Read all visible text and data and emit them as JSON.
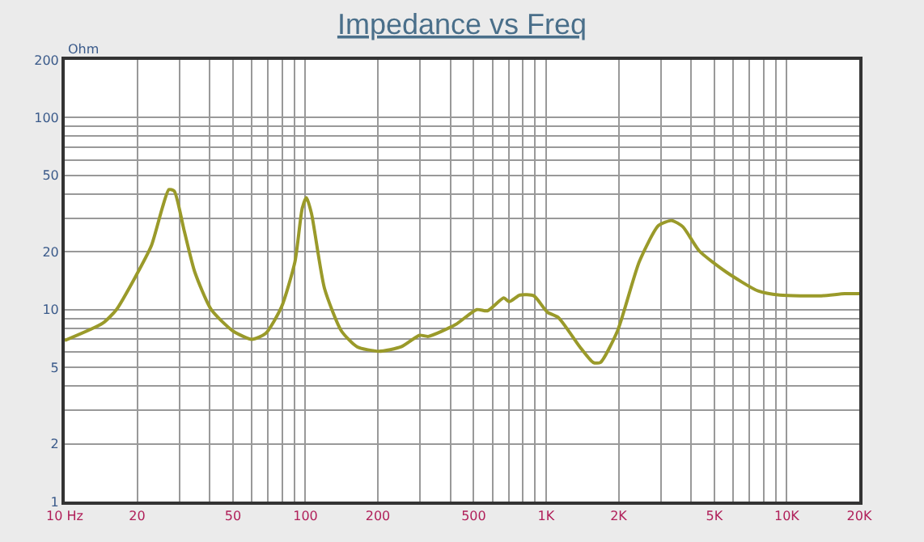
{
  "chart_data": {
    "type": "line",
    "title": "Impedance vs Freq",
    "ylabel": "Ohm",
    "log": "xy",
    "grid": true,
    "legend": false,
    "marker": "none",
    "line_style": "solid",
    "xlim": [
      10,
      20000
    ],
    "ylim": [
      1,
      200
    ],
    "xticks": [
      {
        "value": 10,
        "label": "10 Hz"
      },
      20,
      {
        "value": 30,
        "label": null
      },
      {
        "value": 40,
        "label": null
      },
      50,
      {
        "value": 60,
        "label": null
      },
      {
        "value": 70,
        "label": null
      },
      {
        "value": 80,
        "label": null
      },
      {
        "value": 90,
        "label": null
      },
      100,
      200,
      {
        "value": 300,
        "label": null
      },
      {
        "value": 400,
        "label": null
      },
      500,
      {
        "value": 600,
        "label": null
      },
      {
        "value": 700,
        "label": null
      },
      {
        "value": 800,
        "label": null
      },
      {
        "value": 900,
        "label": null
      },
      {
        "value": 1000,
        "label": "1K"
      },
      {
        "value": 2000,
        "label": "2K"
      },
      {
        "value": 3000,
        "label": null
      },
      {
        "value": 4000,
        "label": null
      },
      {
        "value": 5000,
        "label": "5K"
      },
      {
        "value": 6000,
        "label": null
      },
      {
        "value": 7000,
        "label": null
      },
      {
        "value": 8000,
        "label": null
      },
      {
        "value": 9000,
        "label": null
      },
      {
        "value": 10000,
        "label": "10K"
      },
      {
        "value": 20000,
        "label": "20K"
      }
    ],
    "yticks": [
      1,
      2,
      {
        "value": 3,
        "label": null
      },
      {
        "value": 4,
        "label": null
      },
      5,
      {
        "value": 6,
        "label": null
      },
      {
        "value": 7,
        "label": null
      },
      {
        "value": 8,
        "label": null
      },
      {
        "value": 9,
        "label": null
      },
      10,
      20,
      {
        "value": 30,
        "label": null
      },
      {
        "value": 40,
        "label": null
      },
      50,
      {
        "value": 60,
        "label": null
      },
      {
        "value": 70,
        "label": null
      },
      {
        "value": 80,
        "label": null
      },
      {
        "value": 90,
        "label": null
      },
      100,
      200
    ],
    "series": [
      {
        "color": "#9a9a2a",
        "x": [
          10,
          14.4,
          16.4,
          19.6,
          22.9,
          25.4,
          27.1,
          28.5,
          31.3,
          34.7,
          40.6,
          49.9,
          59.9,
          68.3,
          79.5,
          90.5,
          97,
          101,
          106,
          120,
          141,
          164,
          202,
          250,
          298,
          324,
          420,
          515,
          570,
          667,
          703,
          778,
          889,
          1012,
          1124,
          1380,
          1570,
          1680,
          1980,
          2440,
          2930,
          3330,
          3700,
          4330,
          5600,
          7600,
          9350,
          13900,
          17400,
          20000
        ],
        "values": [
          6.9,
          8.5,
          10,
          14.7,
          21.5,
          33.7,
          42.2,
          41.5,
          26,
          15.7,
          10,
          7.75,
          7.0,
          7.5,
          10.3,
          17.8,
          33.7,
          38.3,
          31.6,
          12.9,
          7.75,
          6.4,
          6.07,
          6.4,
          7.35,
          7.25,
          8.35,
          10,
          9.85,
          11.5,
          11,
          11.9,
          11.8,
          9.7,
          9.1,
          6.4,
          5.3,
          5.3,
          7.75,
          17.8,
          27.4,
          29.1,
          27,
          20.2,
          15.7,
          12.5,
          11.9,
          11.8,
          12.1,
          12.1
        ]
      }
    ]
  }
}
